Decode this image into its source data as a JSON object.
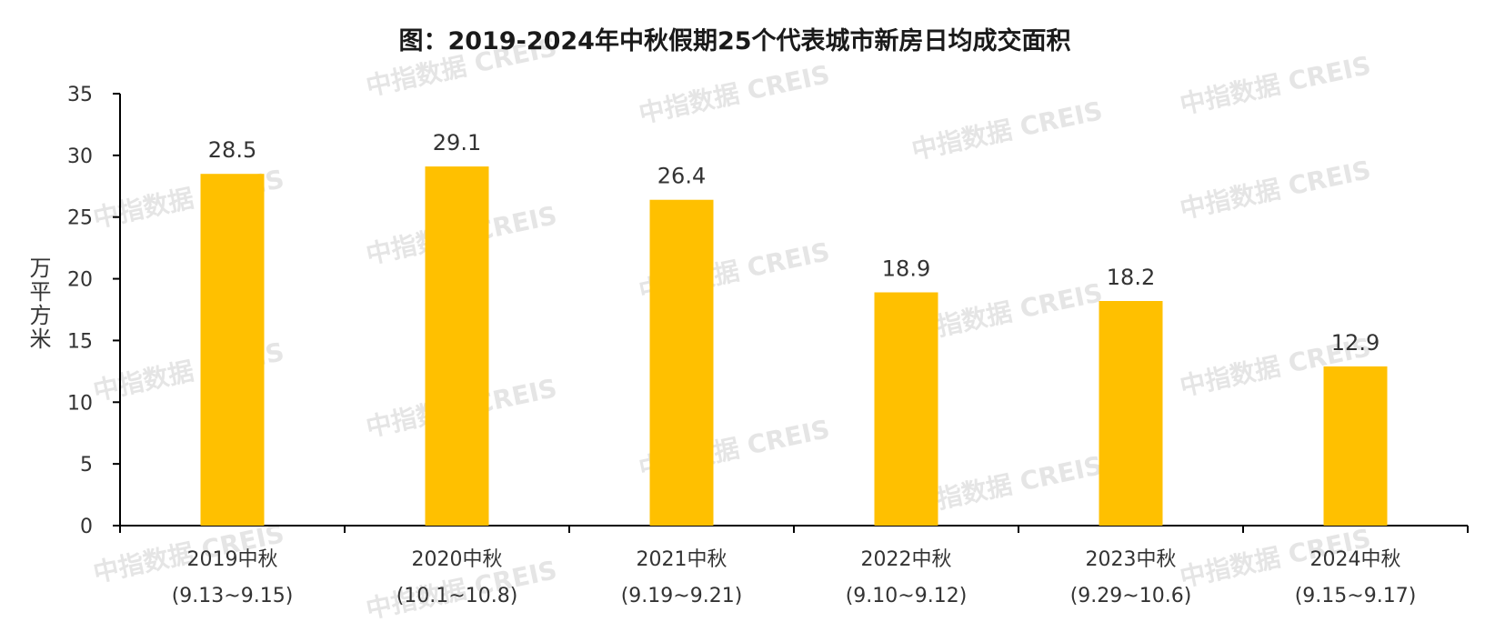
{
  "chart_data": {
    "type": "bar",
    "title": "图：2019-2024年中秋假期25个代表城市新房日均成交面积",
    "ylabel": "万平方米",
    "xlabel": "",
    "ylim": [
      0,
      35
    ],
    "yticks": [
      0,
      5,
      10,
      15,
      20,
      25,
      30,
      35
    ],
    "categories": [
      "2019中秋 (9.13~9.15)",
      "2020中秋 (10.1~10.8)",
      "2021中秋 (9.19~9.21)",
      "2022中秋 (9.10~9.12)",
      "2023中秋 (9.29~10.6)",
      "2024中秋 (9.15~9.17)"
    ],
    "category_lines": [
      [
        "2019中秋",
        "(9.13~9.15)"
      ],
      [
        "2020中秋",
        "(10.1~10.8)"
      ],
      [
        "2021中秋",
        "(9.19~9.21)"
      ],
      [
        "2022中秋",
        "(9.10~9.12)"
      ],
      [
        "2023中秋",
        "(9.29~10.6)"
      ],
      [
        "2024中秋",
        "(9.15~9.17)"
      ]
    ],
    "values": [
      28.5,
      29.1,
      26.4,
      18.9,
      18.2,
      12.9
    ],
    "value_labels": [
      "28.5",
      "29.1",
      "26.4",
      "18.9",
      "18.2",
      "12.9"
    ],
    "bar_color": "#FFC000",
    "axis_color": "#000000",
    "grid": false,
    "legend": "none"
  },
  "watermark": {
    "brand": "中指数据",
    "code": "CREIS",
    "color": "#d0d0d0"
  }
}
